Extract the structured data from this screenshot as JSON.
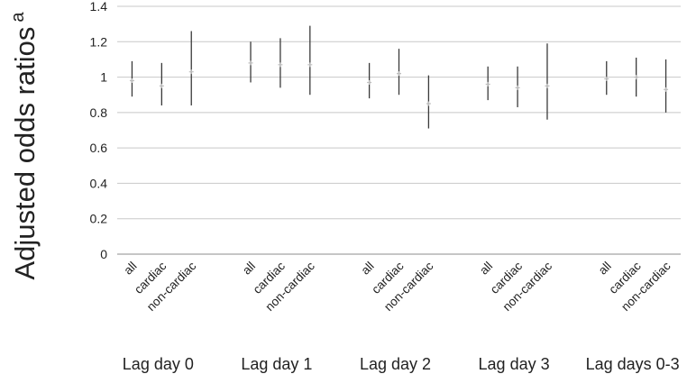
{
  "chart_data": {
    "type": "error-bar",
    "ylabel": "Adjusted odds ratios",
    "ylabel_superscript": "a",
    "ylim": [
      0,
      1.4
    ],
    "yticks": [
      "0",
      "0.2",
      "0.4",
      "0.6",
      "0.8",
      "1",
      "1.2",
      "1.4"
    ],
    "grid": true,
    "groups": [
      {
        "label": "Lag day 0",
        "points": [
          {
            "category": "all",
            "estimate": 0.98,
            "lower": 0.89,
            "upper": 1.09
          },
          {
            "category": "cardiac",
            "estimate": 0.95,
            "lower": 0.84,
            "upper": 1.08
          },
          {
            "category": "non-cardiac",
            "estimate": 1.03,
            "lower": 0.84,
            "upper": 1.26
          }
        ]
      },
      {
        "label": "Lag day 1",
        "points": [
          {
            "category": "all",
            "estimate": 1.08,
            "lower": 0.97,
            "upper": 1.2
          },
          {
            "category": "cardiac",
            "estimate": 1.07,
            "lower": 0.94,
            "upper": 1.22
          },
          {
            "category": "non-cardiac",
            "estimate": 1.07,
            "lower": 0.9,
            "upper": 1.29
          }
        ]
      },
      {
        "label": "Lag day 2",
        "points": [
          {
            "category": "all",
            "estimate": 0.97,
            "lower": 0.88,
            "upper": 1.08
          },
          {
            "category": "cardiac",
            "estimate": 1.02,
            "lower": 0.9,
            "upper": 1.16
          },
          {
            "category": "non-cardiac",
            "estimate": 0.85,
            "lower": 0.71,
            "upper": 1.01
          }
        ]
      },
      {
        "label": "Lag day 3",
        "points": [
          {
            "category": "all",
            "estimate": 0.96,
            "lower": 0.87,
            "upper": 1.06
          },
          {
            "category": "cardiac",
            "estimate": 0.94,
            "lower": 0.83,
            "upper": 1.06
          },
          {
            "category": "non-cardiac",
            "estimate": 0.95,
            "lower": 0.76,
            "upper": 1.19
          }
        ]
      },
      {
        "label": "Lag days 0-3",
        "points": [
          {
            "category": "all",
            "estimate": 0.99,
            "lower": 0.9,
            "upper": 1.09
          },
          {
            "category": "cardiac",
            "estimate": 1.0,
            "lower": 0.89,
            "upper": 1.11
          },
          {
            "category": "non-cardiac",
            "estimate": 0.93,
            "lower": 0.8,
            "upper": 1.1
          }
        ]
      }
    ],
    "colors": {
      "interval": "#3a3a3a",
      "estimate": "#bdbdbd",
      "grid": "#c8c8c8",
      "axis": "#8c8c8c"
    }
  }
}
